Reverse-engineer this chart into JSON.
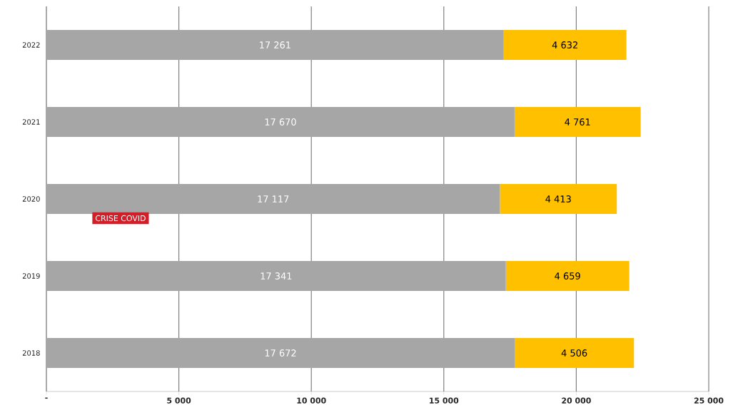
{
  "chart_data": {
    "type": "bar",
    "orientation": "horizontal",
    "stacked": true,
    "categories": [
      "2022",
      "2021",
      "2020",
      "2019",
      "2018"
    ],
    "series": [
      {
        "color": "#a6a6a6",
        "values": [
          17261,
          17670,
          17117,
          17341,
          17672
        ],
        "value_labels": [
          "17 261",
          "17 670",
          "17 117",
          "17 341",
          "17 672"
        ]
      },
      {
        "color": "#ffc000",
        "values": [
          4632,
          4761,
          4413,
          4659,
          4506
        ],
        "value_labels": [
          "4 632",
          "4 761",
          "4 413",
          "4 659",
          "4 506"
        ]
      }
    ],
    "xlim": [
      0,
      25000
    ],
    "xticks": [
      {
        "value": 0,
        "label": "-"
      },
      {
        "value": 5000,
        "label": "5 000"
      },
      {
        "value": 10000,
        "label": "10 000"
      },
      {
        "value": 15000,
        "label": "15 000"
      },
      {
        "value": 20000,
        "label": "20 000"
      },
      {
        "value": 25000,
        "label": "25 000"
      }
    ],
    "grid": "x",
    "annotations": [
      "CRISE COVID"
    ]
  }
}
